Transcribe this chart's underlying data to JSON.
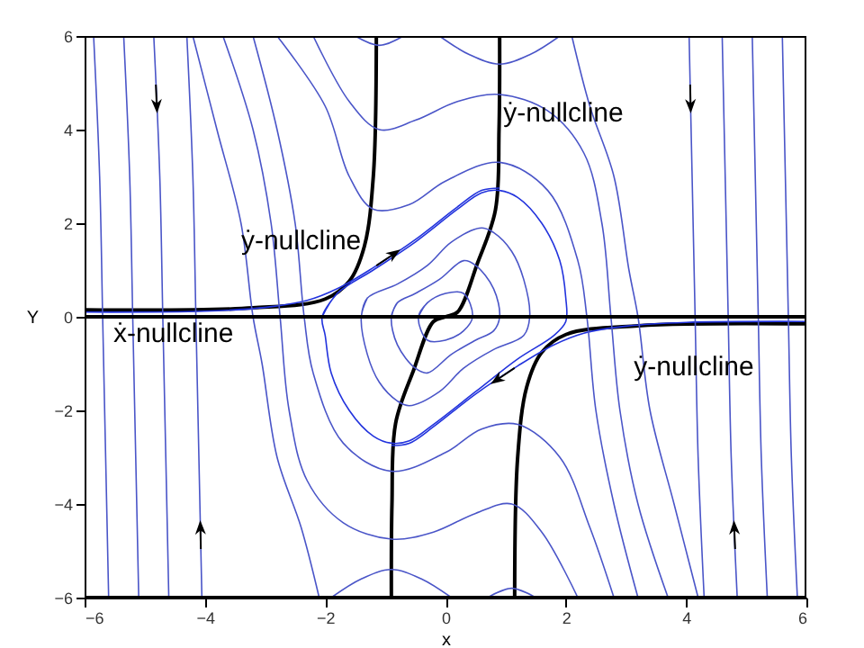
{
  "chart_data": {
    "type": "line",
    "xlabel": "x",
    "ylabel": "Y",
    "xlim": [
      -6,
      6
    ],
    "ylim": [
      -6,
      6
    ],
    "xticks": [
      -6,
      -4,
      -2,
      0,
      2,
      4,
      6
    ],
    "yticks": [
      -6,
      -4,
      -2,
      0,
      2,
      4,
      6
    ],
    "annotations": [
      {
        "text": "ẏ-nullcline",
        "x": 1.96,
        "y": 4.37
      },
      {
        "text": "ẏ-nullcline",
        "x": -2.4,
        "y": 1.63
      },
      {
        "text": "ẏ-nullcline",
        "x": 4.13,
        "y": -1.06
      }
    ],
    "ref_lines": [
      {
        "axis": "y",
        "value": 0,
        "label": "ẋ-nullcline",
        "color": "#000000"
      }
    ],
    "series": [
      {
        "color": "#000000",
        "x": [
          -6,
          -3.2,
          -2.0,
          -1.6,
          -1.35,
          -1.2,
          -1.15
        ],
        "values": [
          0.15,
          0.19,
          0.38,
          0.76,
          1.5,
          3,
          6
        ]
      },
      {
        "color": "#000000",
        "x": [
          -0.9,
          -0.89,
          -0.83,
          -0.53,
          -0.2,
          0,
          0.2,
          0.53,
          0.83,
          0.89,
          0.9
        ],
        "values": [
          -6,
          -4,
          -2.28,
          -1.14,
          -0.1,
          0,
          0.1,
          1.14,
          2.28,
          4,
          6
        ]
      },
      {
        "color": "#000000",
        "x": [
          1.15,
          1.2,
          1.35,
          1.6,
          2.0,
          3.2,
          6
        ],
        "values": [
          -6,
          -3,
          -1.5,
          -0.76,
          -0.38,
          -0.19,
          -0.15
        ]
      },
      {
        "color": "#2233dd",
        "x": [
          -2.05,
          -1.8,
          -1.2,
          -0.5,
          0.2,
          0.6,
          0.9,
          1.2,
          1.6,
          1.9,
          2.0,
          2.0,
          1.8,
          1.2,
          0.5,
          -0.2,
          -0.6,
          -0.9,
          -1.2,
          -1.6,
          -1.9,
          -2.0,
          -2.05,
          -1.8
        ],
        "values": [
          0,
          0.5,
          1.0,
          1.6,
          2.3,
          2.65,
          2.7,
          2.55,
          2.0,
          1.2,
          0.4,
          -0.1,
          -0.4,
          -0.9,
          -1.6,
          -2.3,
          -2.65,
          -2.7,
          -2.55,
          -2.0,
          -1.2,
          -0.4,
          0,
          0.5
        ]
      },
      {
        "color": "#2233dd",
        "x": [
          -6,
          -4,
          -3,
          -2.3,
          -1.8,
          -1.2,
          -0.5,
          0.2,
          0.6,
          0.9
        ],
        "values": [
          0.1,
          0.12,
          0.2,
          0.35,
          0.6,
          1.05,
          1.65,
          2.35,
          2.7,
          2.75
        ]
      },
      {
        "color": "#2233dd",
        "x": [
          6,
          4,
          3,
          2.3,
          1.8,
          1.2,
          0.5,
          -0.2,
          -0.6,
          -0.9
        ],
        "values": [
          -0.1,
          -0.12,
          -0.2,
          -0.35,
          -0.6,
          -1.05,
          -1.65,
          -2.35,
          -2.7,
          -2.75
        ]
      },
      {
        "color": "#4a55c8",
        "x": [
          -1.4,
          -1.3,
          -0.8,
          -0.3,
          0.1,
          0.6,
          0.8,
          1.1,
          1.3,
          1.4,
          1.3,
          0.8,
          0.3,
          -0.1,
          -0.6,
          -0.8,
          -1.1,
          -1.3,
          -1.4,
          -1.3
        ],
        "values": [
          0,
          0.4,
          0.7,
          1.1,
          1.6,
          1.9,
          1.8,
          1.4,
          0.8,
          0,
          -0.4,
          -0.7,
          -1.1,
          -1.6,
          -1.9,
          -1.8,
          -1.4,
          -0.8,
          0,
          0.4
        ]
      },
      {
        "color": "#4a55c8",
        "x": [
          -0.9,
          -0.8,
          -0.5,
          -0.1,
          0.3,
          0.5,
          0.8,
          0.9,
          0.8,
          0.5,
          0.1,
          -0.3,
          -0.5,
          -0.8,
          -0.9,
          -0.8
        ],
        "values": [
          0,
          0.3,
          0.5,
          0.8,
          1.2,
          1.1,
          0.6,
          0,
          -0.3,
          -0.5,
          -0.8,
          -1.2,
          -1.1,
          -0.6,
          0,
          0.3
        ]
      },
      {
        "color": "#4a55c8",
        "x": [
          -0.45,
          -0.3,
          0,
          0.3,
          0.45,
          0.3,
          0,
          -0.3,
          -0.45,
          -0.3
        ],
        "values": [
          0,
          0.3,
          0.5,
          0.5,
          0,
          -0.3,
          -0.5,
          -0.5,
          0,
          0.3
        ]
      },
      {
        "color": "#4a55c8",
        "x": [
          -2.8,
          -2.0,
          -1.6,
          -1.2,
          -0.6,
          0,
          0.9,
          1.7,
          2.2,
          2.35,
          2.5,
          2.8,
          3.2
        ],
        "values": [
          6,
          4.5,
          3.0,
          2.3,
          2.4,
          2.9,
          3.3,
          2.7,
          1.2,
          0,
          -2,
          -4,
          -6
        ]
      },
      {
        "color": "#4a55c8",
        "x": [
          2.8,
          2.4,
          1.9,
          1.2,
          0.6,
          0,
          -0.9,
          -1.7,
          -2.2,
          -2.35,
          -2.5,
          -2.8,
          -3.2
        ],
        "values": [
          -6,
          -4.5,
          -3.0,
          -2.3,
          -2.4,
          -2.9,
          -3.3,
          -2.7,
          -1.2,
          0,
          2,
          4,
          6
        ]
      },
      {
        "color": "#4a55c8",
        "x": [
          -2.2,
          -1.6,
          -1.1,
          -0.5,
          0.2,
          0.9,
          1.7,
          2.3,
          2.6,
          2.75,
          2.9,
          3.2,
          3.7
        ],
        "values": [
          6,
          4.6,
          4.0,
          4.2,
          4.6,
          4.75,
          4.4,
          3.5,
          2,
          0,
          -2,
          -4,
          -6
        ]
      },
      {
        "color": "#4a55c8",
        "x": [
          2.2,
          1.6,
          1.1,
          0.5,
          -0.2,
          -0.9,
          -1.7,
          -2.3,
          -2.6,
          -2.75,
          -2.9,
          -3.2,
          -3.7
        ],
        "values": [
          -6,
          -4.6,
          -4.0,
          -4.2,
          -4.6,
          -4.75,
          -4.4,
          -3.5,
          -2,
          0,
          2,
          4,
          6
        ]
      },
      {
        "color": "#4a55c8",
        "x": [
          -0.1,
          0.4,
          0.9,
          1.4,
          1.9
        ],
        "values": [
          6,
          5.6,
          5.4,
          5.6,
          6
        ]
      },
      {
        "color": "#4a55c8",
        "x": [
          0.1,
          -0.4,
          -0.9,
          -1.4,
          -1.9
        ],
        "values": [
          -6,
          -5.6,
          -5.4,
          -5.6,
          -6
        ]
      },
      {
        "color": "#4a55c8",
        "x": [
          2.1,
          2.4,
          2.8,
          3.05,
          3.2,
          3.4,
          3.8,
          4.2
        ],
        "values": [
          6,
          4.5,
          3,
          1,
          0,
          -2,
          -4,
          -6
        ]
      },
      {
        "color": "#4a55c8",
        "x": [
          -2.1,
          -2.4,
          -2.8,
          -3.05,
          -3.2,
          -3.4,
          -3.8,
          -4.2
        ],
        "values": [
          -6,
          -4.5,
          -3,
          -1,
          0,
          2,
          4,
          6
        ]
      },
      {
        "color": "#4a55c8",
        "x": [
          -1.5,
          -1.1,
          -0.7
        ],
        "values": [
          6,
          5.8,
          6
        ]
      },
      {
        "color": "#4a55c8",
        "x": [
          1.5,
          1.1,
          0.7
        ],
        "values": [
          -6,
          -5.8,
          -6
        ]
      },
      {
        "color": "#4a55c8",
        "x": [
          -5.85,
          -5.75,
          -5.7,
          -5.65,
          -5.6
        ],
        "values": [
          6,
          3,
          0,
          -3,
          -6
        ]
      },
      {
        "color": "#4a55c8",
        "x": [
          -5.35,
          -5.25,
          -5.2,
          -5.15,
          -5.1
        ],
        "values": [
          6,
          3,
          0,
          -3,
          -6
        ]
      },
      {
        "color": "#4a55c8",
        "x": [
          -4.85,
          -4.75,
          -4.7,
          -4.65,
          -4.6
        ],
        "values": [
          6,
          3,
          0,
          -3,
          -6
        ]
      },
      {
        "color": "#4a55c8",
        "x": [
          -4.3,
          -4.2,
          -4.15,
          -4.1,
          -4.05
        ],
        "values": [
          6,
          3,
          0,
          -3,
          -6
        ]
      },
      {
        "color": "#4a55c8",
        "x": [
          5.85,
          5.75,
          5.7,
          5.65,
          5.6
        ],
        "values": [
          -6,
          -3,
          0,
          3,
          6
        ]
      },
      {
        "color": "#4a55c8",
        "x": [
          5.35,
          5.25,
          5.2,
          5.15,
          5.1
        ],
        "values": [
          -6,
          -3,
          0,
          3,
          6
        ]
      },
      {
        "color": "#4a55c8",
        "x": [
          4.85,
          4.75,
          4.7,
          4.65,
          4.6
        ],
        "values": [
          -6,
          -3,
          0,
          3,
          6
        ]
      },
      {
        "color": "#4a55c8",
        "x": [
          4.3,
          4.2,
          4.15,
          4.1,
          4.05
        ],
        "values": [
          -6,
          -3,
          0,
          3,
          6
        ]
      }
    ]
  }
}
